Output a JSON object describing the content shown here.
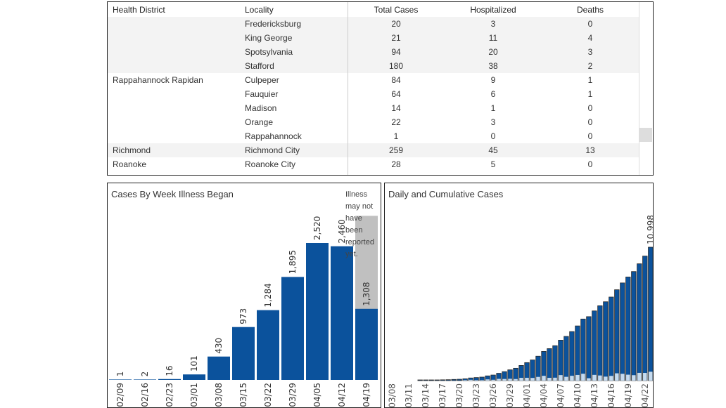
{
  "table": {
    "columns": [
      "Health District",
      "Locality",
      "Total Cases",
      "Hospitalized",
      "Deaths"
    ],
    "rows": [
      {
        "district": "",
        "locality": "Fredericksburg",
        "total": "20",
        "hosp": "3",
        "deaths": "0",
        "band": true
      },
      {
        "district": "",
        "locality": "King George",
        "total": "21",
        "hosp": "11",
        "deaths": "4",
        "band": true
      },
      {
        "district": "",
        "locality": "Spotsylvania",
        "total": "94",
        "hosp": "20",
        "deaths": "3",
        "band": true
      },
      {
        "district": "",
        "locality": "Stafford",
        "total": "180",
        "hosp": "38",
        "deaths": "2",
        "band": true
      },
      {
        "district": "Rappahannock Rapidan",
        "locality": "Culpeper",
        "total": "84",
        "hosp": "9",
        "deaths": "1",
        "band": false
      },
      {
        "district": "",
        "locality": "Fauquier",
        "total": "64",
        "hosp": "6",
        "deaths": "1",
        "band": false
      },
      {
        "district": "",
        "locality": "Madison",
        "total": "14",
        "hosp": "1",
        "deaths": "0",
        "band": false
      },
      {
        "district": "",
        "locality": "Orange",
        "total": "22",
        "hosp": "3",
        "deaths": "0",
        "band": false
      },
      {
        "district": "",
        "locality": "Rappahannock",
        "total": "1",
        "hosp": "0",
        "deaths": "0",
        "band": false
      },
      {
        "district": "Richmond",
        "locality": "Richmond City",
        "total": "259",
        "hosp": "45",
        "deaths": "13",
        "band": true
      },
      {
        "district": "Roanoke",
        "locality": "Roanoke City",
        "total": "28",
        "hosp": "5",
        "deaths": "0",
        "band": false
      }
    ]
  },
  "colors": {
    "bar": "#0b529c",
    "pending": "#c0c0c0",
    "daily": "#c6dbef",
    "outline": "#2a2a2a"
  },
  "chart_data": [
    {
      "type": "bar",
      "title": "Cases By Week Illness Began",
      "categories": [
        "02/09",
        "02/16",
        "02/23",
        "03/01",
        "03/08",
        "03/15",
        "03/22",
        "03/29",
        "04/05",
        "04/12",
        "04/19"
      ],
      "values": [
        1,
        2,
        16,
        101,
        430,
        973,
        1284,
        1895,
        2520,
        2460,
        1308
      ],
      "data_labels": [
        "1",
        "2",
        "16",
        "101",
        "430",
        "973",
        "1,284",
        "1,895",
        "2,520",
        "2,460",
        "1,308"
      ],
      "pending_background": {
        "category": "04/19",
        "value": 3020
      },
      "annotation": "Illness may not have been reported yet.",
      "ylim": [
        0,
        3100
      ],
      "grid": false
    },
    {
      "type": "bar",
      "title": "Daily and Cumulative Cases",
      "categories": [
        "03/08",
        "03/09",
        "03/10",
        "03/11",
        "03/12",
        "03/13",
        "03/14",
        "03/15",
        "03/16",
        "03/17",
        "03/18",
        "03/19",
        "03/20",
        "03/21",
        "03/22",
        "03/23",
        "03/24",
        "03/25",
        "03/26",
        "03/27",
        "03/28",
        "03/29",
        "03/30",
        "03/31",
        "04/01",
        "04/02",
        "04/03",
        "04/04",
        "04/05",
        "04/06",
        "04/07",
        "04/08",
        "04/09",
        "04/10",
        "04/11",
        "04/12",
        "04/13",
        "04/14",
        "04/15",
        "04/16",
        "04/17",
        "04/18",
        "04/19",
        "04/20",
        "04/21",
        "04/22",
        "04/23"
      ],
      "tick_labels": [
        "03/08",
        "03/11",
        "03/14",
        "03/17",
        "03/20",
        "03/23",
        "03/26",
        "03/29",
        "04/01",
        "04/04",
        "04/07",
        "04/10",
        "04/13",
        "04/16",
        "04/19",
        "04/22"
      ],
      "series": [
        {
          "name": "Cumulative",
          "values": [
            0,
            0,
            0,
            0,
            0,
            41,
            45,
            45,
            51,
            67,
            77,
            99,
            114,
            152,
            219,
            254,
            290,
            391,
            460,
            604,
            739,
            890,
            1020,
            1250,
            1484,
            1706,
            2012,
            2407,
            2637,
            2878,
            3333,
            3645,
            4042,
            4509,
            5077,
            5274,
            5747,
            6171,
            6500,
            6889,
            7491,
            8053,
            8542,
            8990,
            9630,
            10266,
            10998
          ]
        },
        {
          "name": "Daily",
          "values": [
            0,
            0,
            0,
            0,
            0,
            9,
            4,
            0,
            6,
            16,
            10,
            22,
            15,
            38,
            67,
            35,
            36,
            101,
            69,
            144,
            135,
            151,
            130,
            230,
            234,
            222,
            306,
            395,
            230,
            241,
            455,
            312,
            397,
            467,
            568,
            197,
            473,
            424,
            329,
            389,
            602,
            562,
            489,
            448,
            640,
            636,
            732
          ]
        }
      ],
      "data_labels": [
        {
          "category": "04/23",
          "text": "10,998"
        }
      ],
      "ylim": [
        0,
        12000
      ],
      "grid": false
    }
  ]
}
